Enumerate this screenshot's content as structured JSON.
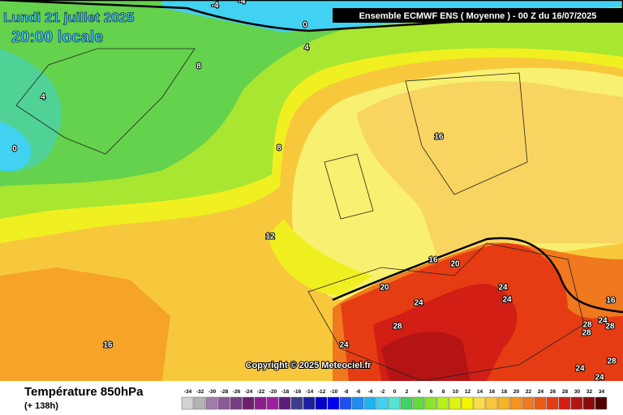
{
  "header": {
    "date": "Lundi 21 juillet 2025",
    "time": "20:00 locale",
    "model": "Ensemble ECMWF ENS  ( Moyenne )  -  00 Z du 16/07/2025"
  },
  "map": {
    "copyright": "Copyright © 2025 Meteociel.fr",
    "contour_labels": [
      "-4",
      "-4",
      "0",
      "4",
      "8",
      "4",
      "0",
      "8",
      "16",
      "12",
      "16",
      "20",
      "20",
      "24",
      "24",
      "24",
      "28",
      "16",
      "24",
      "16",
      "28",
      "24",
      "28",
      "28",
      "28",
      "24",
      "24"
    ]
  },
  "footer": {
    "title": "Température 850hPa",
    "subtitle": "(+ 138h)"
  },
  "legend": {
    "values": [
      -34,
      -32,
      -30,
      -28,
      -26,
      -24,
      -22,
      -20,
      -18,
      -16,
      -14,
      -12,
      -10,
      -8,
      -6,
      -4,
      -2,
      0,
      2,
      4,
      6,
      8,
      10,
      12,
      14,
      16,
      18,
      20,
      22,
      24,
      26,
      28,
      30,
      32,
      34
    ],
    "colors": [
      "#d2d2d2",
      "#b4b4b4",
      "#a07ca8",
      "#8c5a96",
      "#783c82",
      "#6e1e6e",
      "#8c1e8c",
      "#a01ea0",
      "#5a1e78",
      "#3c3c8c",
      "#1e1ea0",
      "#0000c8",
      "#0000f0",
      "#1e50f0",
      "#1e8cf0",
      "#1eb4f0",
      "#40d2f0",
      "#50e6d2",
      "#40d264",
      "#64dc3c",
      "#8ce628",
      "#b4f01e",
      "#dcf514",
      "#f5f500",
      "#f8dc50",
      "#f8c83c",
      "#f5b428",
      "#f5961e",
      "#f0781e",
      "#eb5a14",
      "#e63c14",
      "#d21e14",
      "#b41414",
      "#8c0a0a",
      "#500000"
    ]
  }
}
